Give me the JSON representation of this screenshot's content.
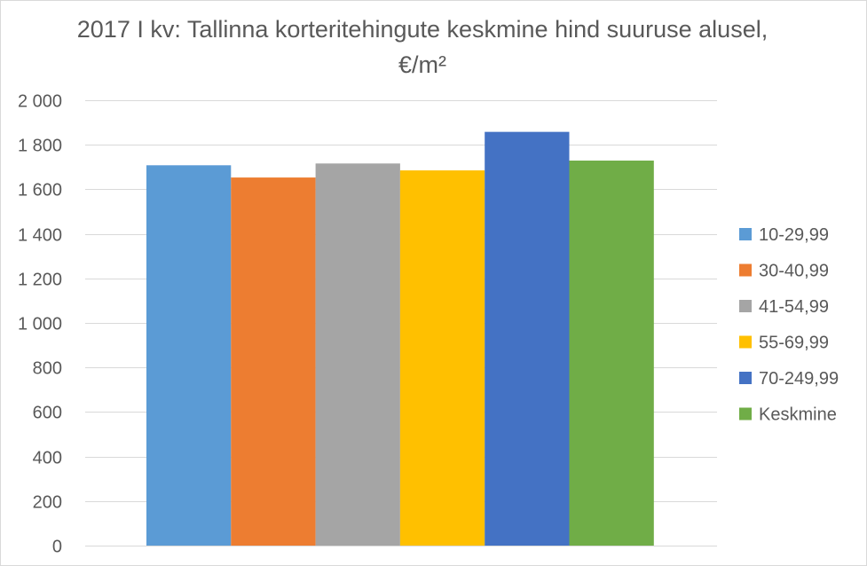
{
  "chart_data": {
    "type": "bar",
    "title": "2017 I kv: Tallinna korteritehingute keskmine hind suuruse alusel, €/m²",
    "categories": [
      ""
    ],
    "series": [
      {
        "name": "10-29,99",
        "color": "#5b9bd5",
        "values": [
          1708
        ]
      },
      {
        "name": "30-40,99",
        "color": "#ed7d31",
        "values": [
          1653
        ]
      },
      {
        "name": "41-54,99",
        "color": "#a5a5a5",
        "values": [
          1716
        ]
      },
      {
        "name": "55-69,99",
        "color": "#ffc000",
        "values": [
          1685
        ]
      },
      {
        "name": "70-249,99",
        "color": "#4472c4",
        "values": [
          1858
        ]
      },
      {
        "name": "Keskmine",
        "color": "#70ad47",
        "values": [
          1729
        ]
      }
    ],
    "ylim": [
      0,
      2000
    ],
    "yticks": [
      {
        "value": 0,
        "label": "0"
      },
      {
        "value": 200,
        "label": "200"
      },
      {
        "value": 400,
        "label": "400"
      },
      {
        "value": 600,
        "label": "600"
      },
      {
        "value": 800,
        "label": "800"
      },
      {
        "value": 1000,
        "label": "1 000"
      },
      {
        "value": 1200,
        "label": "1 200"
      },
      {
        "value": 1400,
        "label": "1 400"
      },
      {
        "value": 1600,
        "label": "1 600"
      },
      {
        "value": 1800,
        "label": "1 800"
      },
      {
        "value": 2000,
        "label": "2 000"
      }
    ],
    "grid": true,
    "legend_position": "right"
  }
}
